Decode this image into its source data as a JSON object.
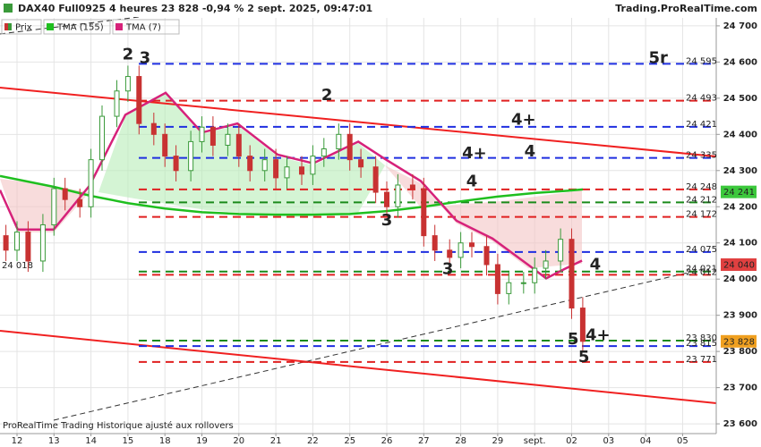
{
  "header": {
    "title": "DAX40 Full0925 4 heures 23 828 -0,94 % 2 sept. 2025, 09:47:01",
    "site": "Trading.ProRealTime.com"
  },
  "footer": "ProRealTime Trading  Historique ajusté aux rollovers",
  "chart_data": {
    "type": "candlestick",
    "xlim": [
      -0.46,
      18.91
    ],
    "ylim": [
      23573,
      24722
    ],
    "xticks": [
      {
        "value": 0,
        "label": "12"
      },
      {
        "value": 1,
        "label": "13"
      },
      {
        "value": 2,
        "label": "14"
      },
      {
        "value": 3,
        "label": "15"
      },
      {
        "value": 4,
        "label": "18"
      },
      {
        "value": 5,
        "label": "19"
      },
      {
        "value": 6,
        "label": "20"
      },
      {
        "value": 7,
        "label": "21"
      },
      {
        "value": 8,
        "label": "22"
      },
      {
        "value": 9,
        "label": "25"
      },
      {
        "value": 10,
        "label": "26"
      },
      {
        "value": 11,
        "label": "27"
      },
      {
        "value": 12,
        "label": "28"
      },
      {
        "value": 13,
        "label": "29"
      },
      {
        "value": 14,
        "label": "sept."
      },
      {
        "value": 15,
        "label": "02"
      },
      {
        "value": 16,
        "label": "03"
      },
      {
        "value": 17,
        "label": "04"
      },
      {
        "value": 18,
        "label": "05"
      }
    ],
    "yticks": [
      {
        "value": 23600,
        "label": "23 600"
      },
      {
        "value": 23700,
        "label": "23 700"
      },
      {
        "value": 23800,
        "label": "23 800"
      },
      {
        "value": 23900,
        "label": "23 900"
      },
      {
        "value": 24000,
        "label": "24 000"
      },
      {
        "value": 24100,
        "label": "24 100"
      },
      {
        "value": 24200,
        "label": "24 200"
      },
      {
        "value": 24300,
        "label": "24 300"
      },
      {
        "value": 24400,
        "label": "24 400"
      },
      {
        "value": 24500,
        "label": "24 500"
      },
      {
        "value": 24600,
        "label": "24 600"
      },
      {
        "value": 24700,
        "label": "24 700"
      }
    ],
    "grid": true,
    "candles": {
      "name": "Prix",
      "up_color": "#3a9a3a",
      "down_color": "#c83232",
      "x": [
        -0.3,
        0,
        0.3,
        0.7,
        1,
        1.3,
        1.7,
        2,
        2.3,
        2.7,
        3,
        3.3,
        3.7,
        4,
        4.3,
        4.7,
        5,
        5.3,
        5.7,
        6,
        6.3,
        6.7,
        7,
        7.3,
        7.7,
        8,
        8.3,
        8.7,
        9,
        9.3,
        9.7,
        10,
        10.3,
        10.7,
        11,
        11.3,
        11.7,
        12,
        12.3,
        12.7,
        13,
        13.3,
        13.7,
        14,
        14.3,
        14.7,
        15,
        15.3
      ],
      "open": [
        24120,
        24080,
        24130,
        24050,
        24150,
        24250,
        24220,
        24200,
        24330,
        24450,
        24520,
        24560,
        24430,
        24400,
        24340,
        24300,
        24380,
        24420,
        24370,
        24400,
        24340,
        24300,
        24330,
        24280,
        24310,
        24290,
        24340,
        24360,
        24400,
        24330,
        24310,
        24240,
        24200,
        24260,
        24250,
        24120,
        24080,
        24060,
        24100,
        24090,
        24040,
        23960,
        23990,
        23990,
        24030,
        24050,
        24110,
        23920
      ],
      "high": [
        24150,
        24160,
        24160,
        24180,
        24280,
        24280,
        24250,
        24360,
        24480,
        24550,
        24590,
        24590,
        24460,
        24430,
        24370,
        24410,
        24450,
        24450,
        24430,
        24430,
        24370,
        24360,
        24360,
        24340,
        24340,
        24370,
        24390,
        24430,
        24430,
        24360,
        24340,
        24270,
        24290,
        24290,
        24280,
        24150,
        24110,
        24130,
        24130,
        24120,
        24070,
        24020,
        24020,
        24060,
        24080,
        24140,
        24140,
        23950
      ],
      "low": [
        24050,
        24050,
        24020,
        24020,
        24120,
        24190,
        24170,
        24170,
        24300,
        24420,
        24490,
        24400,
        24370,
        24310,
        24270,
        24270,
        24350,
        24340,
        24340,
        24310,
        24270,
        24270,
        24250,
        24250,
        24260,
        24260,
        24310,
        24330,
        24300,
        24280,
        24210,
        24170,
        24170,
        24220,
        24090,
        24050,
        24030,
        24030,
        24060,
        24010,
        23930,
        23930,
        23960,
        23960,
        24000,
        24020,
        23890,
        23800
      ],
      "close": [
        24080,
        24130,
        24050,
        24150,
        24250,
        24220,
        24200,
        24330,
        24450,
        24520,
        24560,
        24430,
        24400,
        24340,
        24300,
        24380,
        24420,
        24370,
        24400,
        24340,
        24300,
        24330,
        24280,
        24310,
        24290,
        24340,
        24360,
        24400,
        24330,
        24310,
        24240,
        24200,
        24260,
        24250,
        24120,
        24080,
        24060,
        24100,
        24090,
        24040,
        23960,
        23990,
        23990,
        24030,
        24050,
        24110,
        23920,
        23828
      ]
    },
    "series": [
      {
        "name": "TMA (155)",
        "color": "#1fbf1f",
        "x": [
          -0.46,
          1,
          2,
          3,
          4,
          5,
          6,
          7,
          8,
          9,
          10,
          11,
          12,
          13,
          14,
          15,
          15.3
        ],
        "values": [
          24285,
          24255,
          24230,
          24210,
          24195,
          24185,
          24180,
          24178,
          24178,
          24180,
          24188,
          24200,
          24215,
          24228,
          24238,
          24245,
          24248
        ]
      },
      {
        "name": "TMA (7)",
        "color": "#d6227a",
        "x": [
          -0.46,
          0.02,
          0.99,
          1.96,
          2.93,
          4.02,
          5.0,
          5.96,
          7.05,
          8.01,
          9.23,
          9.95,
          10.92,
          11.89,
          12.86,
          13.83,
          14.31,
          14.79,
          15.28
        ],
        "values": [
          24246,
          24137,
          24137,
          24258,
          24454,
          24515,
          24405,
          24430,
          24344,
          24320,
          24380,
          24332,
          24271,
          24161,
          24112,
          24039,
          24002,
          24027,
          24051
        ]
      }
    ],
    "levels": [
      {
        "value": 24595,
        "label": "24 595",
        "color": "#1f2fe0"
      },
      {
        "value": 24493,
        "label": "24 493",
        "color": "#e02020"
      },
      {
        "value": 24421,
        "label": "24 421",
        "color": "#1f2fe0"
      },
      {
        "value": 24335,
        "label": "24 335",
        "color": "#1f2fe0"
      },
      {
        "value": 24248,
        "label": "24 248",
        "color": "#e02020"
      },
      {
        "value": 24212,
        "label": "24 212",
        "color": "#1a8a1a"
      },
      {
        "value": 24172,
        "label": "24 172",
        "color": "#e02020"
      },
      {
        "value": 24075,
        "label": "24 075",
        "color": "#1f2fe0"
      },
      {
        "value": 24021,
        "label": "24 021",
        "color": "#1a8a1a"
      },
      {
        "value": 24012,
        "label": "24 012",
        "color": "#e02020"
      },
      {
        "value": 23830,
        "label": "23 830",
        "color": "#1a8a1a"
      },
      {
        "value": 23815,
        "label": "23 815",
        "color": "#1f2fe0"
      },
      {
        "value": 23771,
        "label": "23 771",
        "color": "#e02020"
      }
    ],
    "left_label": {
      "value": 24018,
      "label": "24 018",
      "color": "#e02020"
    },
    "price_tags": [
      {
        "value": 24241,
        "label": "24 241",
        "color": "#3cc83c"
      },
      {
        "value": 24040,
        "label": "24 040",
        "color": "#e04040"
      },
      {
        "value": 23828,
        "label": "23 828",
        "color": "#f0a020"
      }
    ],
    "annotations": [
      {
        "text": "2",
        "x": 3.0,
        "y": 24620,
        "color": "#1f2fe0"
      },
      {
        "text": "3",
        "x": 3.46,
        "y": 24610,
        "color": "#1a8a1a"
      },
      {
        "text": "2",
        "x": 8.38,
        "y": 24507,
        "color": "#e04040"
      },
      {
        "text": "4+",
        "x": 12.37,
        "y": 24346,
        "color": "#e04040"
      },
      {
        "text": "4",
        "x": 12.3,
        "y": 24268,
        "color": "#e04040"
      },
      {
        "text": "4+",
        "x": 13.7,
        "y": 24439,
        "color": "#1f2fe0"
      },
      {
        "text": "4",
        "x": 13.87,
        "y": 24351,
        "color": "#1f2fe0"
      },
      {
        "text": "3",
        "x": 10.0,
        "y": 24161,
        "color": "#1f2fe0"
      },
      {
        "text": "3",
        "x": 11.65,
        "y": 24027,
        "color": "#e04040"
      },
      {
        "text": "4",
        "x": 15.64,
        "y": 24039,
        "color": "#1a8a1a"
      },
      {
        "text": "5r",
        "x": 17.34,
        "y": 24610,
        "color": "#1a8a1a"
      },
      {
        "text": "5",
        "x": 15.04,
        "y": 23832,
        "color": "#1f2fe0"
      },
      {
        "text": "4+",
        "x": 15.71,
        "y": 23844,
        "color": "#1a8a1a"
      },
      {
        "text": "5",
        "x": 15.33,
        "y": 23783,
        "color": "#e04040"
      }
    ]
  }
}
